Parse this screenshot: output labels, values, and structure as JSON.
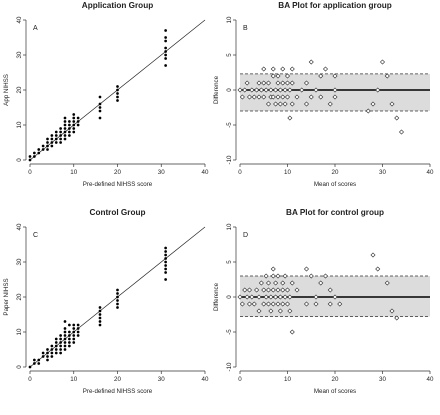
{
  "chart_data": [
    {
      "panel": "A",
      "type": "scatter",
      "title": "Application Group",
      "xlabel": "Pre-defined NIHSS score",
      "ylabel": "App NIHSS",
      "xlim": [
        0,
        40
      ],
      "ylim": [
        0,
        40
      ],
      "xticks": [
        0,
        10,
        20,
        30,
        40
      ],
      "yticks": [
        0,
        10,
        20,
        30,
        40
      ],
      "identity_line": true,
      "points": [
        [
          0,
          0
        ],
        [
          0,
          1
        ],
        [
          1,
          1
        ],
        [
          1,
          2
        ],
        [
          2,
          2
        ],
        [
          2,
          3
        ],
        [
          3,
          3
        ],
        [
          3,
          4
        ],
        [
          4,
          4
        ],
        [
          4,
          3
        ],
        [
          4,
          5
        ],
        [
          4,
          6
        ],
        [
          5,
          5
        ],
        [
          5,
          4
        ],
        [
          5,
          6
        ],
        [
          5,
          7
        ],
        [
          6,
          5
        ],
        [
          6,
          6
        ],
        [
          6,
          7
        ],
        [
          6,
          8
        ],
        [
          7,
          6
        ],
        [
          7,
          7
        ],
        [
          7,
          8
        ],
        [
          7,
          9
        ],
        [
          7,
          5
        ],
        [
          8,
          7
        ],
        [
          8,
          8
        ],
        [
          8,
          9
        ],
        [
          8,
          10
        ],
        [
          8,
          11
        ],
        [
          8,
          12
        ],
        [
          8,
          6
        ],
        [
          9,
          8
        ],
        [
          9,
          9
        ],
        [
          9,
          10
        ],
        [
          9,
          11
        ],
        [
          9,
          7
        ],
        [
          10,
          8
        ],
        [
          10,
          9
        ],
        [
          10,
          10
        ],
        [
          10,
          11
        ],
        [
          10,
          12
        ],
        [
          10,
          13
        ],
        [
          11,
          10
        ],
        [
          11,
          11
        ],
        [
          11,
          12
        ],
        [
          16,
          12
        ],
        [
          16,
          14
        ],
        [
          16,
          15
        ],
        [
          16,
          16
        ],
        [
          16,
          18
        ],
        [
          20,
          17
        ],
        [
          20,
          18
        ],
        [
          20,
          19
        ],
        [
          20,
          20
        ],
        [
          20,
          21
        ],
        [
          31,
          27
        ],
        [
          31,
          29
        ],
        [
          31,
          30
        ],
        [
          31,
          31
        ],
        [
          31,
          32
        ],
        [
          31,
          34
        ],
        [
          31,
          35
        ],
        [
          31,
          37
        ]
      ]
    },
    {
      "panel": "B",
      "type": "scatter",
      "title": "BA Plot for application group",
      "xlabel": "Mean of scores",
      "ylabel": "Difference",
      "xlim": [
        0,
        40
      ],
      "ylim": [
        -10,
        10
      ],
      "xticks": [
        0,
        10,
        20,
        30,
        40
      ],
      "yticks": [
        -10,
        -5,
        0,
        5,
        10
      ],
      "mean_difference": 0,
      "limits_of_agreement": [
        -3,
        2.3
      ],
      "points": [
        [
          0,
          0
        ],
        [
          0.5,
          -1
        ],
        [
          1,
          0
        ],
        [
          1.5,
          1
        ],
        [
          2,
          -1
        ],
        [
          2.5,
          0
        ],
        [
          3,
          -1
        ],
        [
          3.5,
          0
        ],
        [
          4,
          -1
        ],
        [
          4,
          1
        ],
        [
          4.5,
          0
        ],
        [
          5,
          -1
        ],
        [
          5,
          3
        ],
        [
          5,
          1
        ],
        [
          5.5,
          0
        ],
        [
          6,
          -2
        ],
        [
          6,
          1
        ],
        [
          6.5,
          0
        ],
        [
          6.5,
          -1
        ],
        [
          7,
          2
        ],
        [
          7,
          -1
        ],
        [
          7,
          3
        ],
        [
          7.5,
          0
        ],
        [
          7.5,
          -2
        ],
        [
          8,
          1
        ],
        [
          8,
          -1
        ],
        [
          8,
          2
        ],
        [
          8.5,
          0
        ],
        [
          8.5,
          -2
        ],
        [
          9,
          1
        ],
        [
          9,
          -1
        ],
        [
          9,
          3
        ],
        [
          9.5,
          0
        ],
        [
          9.5,
          -2
        ],
        [
          10,
          1
        ],
        [
          10,
          -1
        ],
        [
          10,
          2
        ],
        [
          10.5,
          0
        ],
        [
          10.5,
          -4
        ],
        [
          11,
          1
        ],
        [
          11,
          -2
        ],
        [
          11,
          3
        ],
        [
          12,
          -1
        ],
        [
          13,
          0
        ],
        [
          14,
          -2
        ],
        [
          14,
          1
        ],
        [
          15,
          -1
        ],
        [
          15,
          4
        ],
        [
          16,
          0
        ],
        [
          17,
          -1
        ],
        [
          17,
          2
        ],
        [
          18,
          3
        ],
        [
          19,
          -2
        ],
        [
          20,
          0
        ],
        [
          20,
          -1
        ],
        [
          20,
          2
        ],
        [
          27,
          -3
        ],
        [
          28,
          -2
        ],
        [
          29,
          0
        ],
        [
          30,
          4
        ],
        [
          31,
          2
        ],
        [
          32,
          -2
        ],
        [
          33,
          -4
        ],
        [
          34,
          -6
        ]
      ]
    },
    {
      "panel": "C",
      "type": "scatter",
      "title": "Control Group",
      "xlabel": "Pre-defined NIHSS score",
      "ylabel": "Paper NIHSS",
      "xlim": [
        0,
        40
      ],
      "ylim": [
        0,
        40
      ],
      "xticks": [
        0,
        10,
        20,
        30,
        40
      ],
      "yticks": [
        0,
        10,
        20,
        30,
        40
      ],
      "identity_line": true,
      "points": [
        [
          0,
          0
        ],
        [
          1,
          1
        ],
        [
          1,
          2
        ],
        [
          2,
          1
        ],
        [
          2,
          2
        ],
        [
          3,
          3
        ],
        [
          3,
          4
        ],
        [
          4,
          2
        ],
        [
          4,
          3
        ],
        [
          4,
          4
        ],
        [
          4,
          5
        ],
        [
          5,
          3
        ],
        [
          5,
          4
        ],
        [
          5,
          5
        ],
        [
          5,
          6
        ],
        [
          6,
          4
        ],
        [
          6,
          5
        ],
        [
          6,
          6
        ],
        [
          6,
          7
        ],
        [
          6,
          8
        ],
        [
          7,
          4
        ],
        [
          7,
          5
        ],
        [
          7,
          6
        ],
        [
          7,
          7
        ],
        [
          7,
          8
        ],
        [
          7,
          9
        ],
        [
          8,
          5
        ],
        [
          8,
          6
        ],
        [
          8,
          7
        ],
        [
          8,
          8
        ],
        [
          8,
          9
        ],
        [
          8,
          10
        ],
        [
          8,
          11
        ],
        [
          8,
          13
        ],
        [
          9,
          6
        ],
        [
          9,
          7
        ],
        [
          9,
          8
        ],
        [
          9,
          9
        ],
        [
          9,
          10
        ],
        [
          9,
          12
        ],
        [
          10,
          7
        ],
        [
          10,
          8
        ],
        [
          10,
          9
        ],
        [
          10,
          10
        ],
        [
          10,
          11
        ],
        [
          10,
          12
        ],
        [
          11,
          9
        ],
        [
          11,
          10
        ],
        [
          11,
          11
        ],
        [
          11,
          12
        ],
        [
          16,
          12
        ],
        [
          16,
          13
        ],
        [
          16,
          14
        ],
        [
          16,
          15
        ],
        [
          16,
          16
        ],
        [
          16,
          17
        ],
        [
          20,
          17
        ],
        [
          20,
          18
        ],
        [
          20,
          19
        ],
        [
          20,
          20
        ],
        [
          20,
          21
        ],
        [
          20,
          22
        ],
        [
          31,
          25
        ],
        [
          31,
          27
        ],
        [
          31,
          28
        ],
        [
          31,
          29
        ],
        [
          31,
          30
        ],
        [
          31,
          31
        ],
        [
          31,
          32
        ],
        [
          31,
          33
        ],
        [
          31,
          34
        ]
      ]
    },
    {
      "panel": "D",
      "type": "scatter",
      "title": "BA Plot for control group",
      "xlabel": "Mean of scores",
      "ylabel": "Difference",
      "xlim": [
        0,
        40
      ],
      "ylim": [
        -10,
        10
      ],
      "xticks": [
        0,
        10,
        20,
        30,
        40
      ],
      "yticks": [
        -10,
        -5,
        0,
        5,
        10
      ],
      "mean_difference": 0,
      "limits_of_agreement": [
        -2.8,
        3
      ],
      "points": [
        [
          0,
          0
        ],
        [
          0.5,
          -1
        ],
        [
          1,
          1
        ],
        [
          1.5,
          0
        ],
        [
          2,
          -1
        ],
        [
          2,
          1
        ],
        [
          2.5,
          0
        ],
        [
          3,
          -1
        ],
        [
          3.5,
          1
        ],
        [
          4,
          0
        ],
        [
          4,
          -2
        ],
        [
          4.5,
          2
        ],
        [
          5,
          -1
        ],
        [
          5,
          1
        ],
        [
          5.5,
          0
        ],
        [
          5.5,
          3
        ],
        [
          6,
          -1
        ],
        [
          6,
          1
        ],
        [
          6,
          2
        ],
        [
          6.5,
          0
        ],
        [
          6.5,
          -2
        ],
        [
          7,
          1
        ],
        [
          7,
          -1
        ],
        [
          7,
          3
        ],
        [
          7,
          4
        ],
        [
          7.5,
          0
        ],
        [
          7.5,
          2
        ],
        [
          8,
          -1
        ],
        [
          8,
          1
        ],
        [
          8,
          3
        ],
        [
          8.5,
          0
        ],
        [
          8.5,
          -2
        ],
        [
          9,
          1
        ],
        [
          9,
          2
        ],
        [
          9,
          -1
        ],
        [
          9.5,
          0
        ],
        [
          9.5,
          3
        ],
        [
          10,
          1
        ],
        [
          10,
          -1
        ],
        [
          10.5,
          0
        ],
        [
          10.5,
          -2
        ],
        [
          11,
          -5
        ],
        [
          11,
          2
        ],
        [
          12,
          1
        ],
        [
          14,
          -1
        ],
        [
          14,
          4
        ],
        [
          15,
          3
        ],
        [
          16,
          0
        ],
        [
          16,
          -1
        ],
        [
          17,
          2
        ],
        [
          18,
          3
        ],
        [
          19,
          1
        ],
        [
          19,
          -1
        ],
        [
          20,
          0
        ],
        [
          21,
          -1
        ],
        [
          28,
          6
        ],
        [
          29,
          4
        ],
        [
          31,
          2
        ],
        [
          32,
          -2
        ],
        [
          33,
          -3
        ]
      ]
    }
  ]
}
